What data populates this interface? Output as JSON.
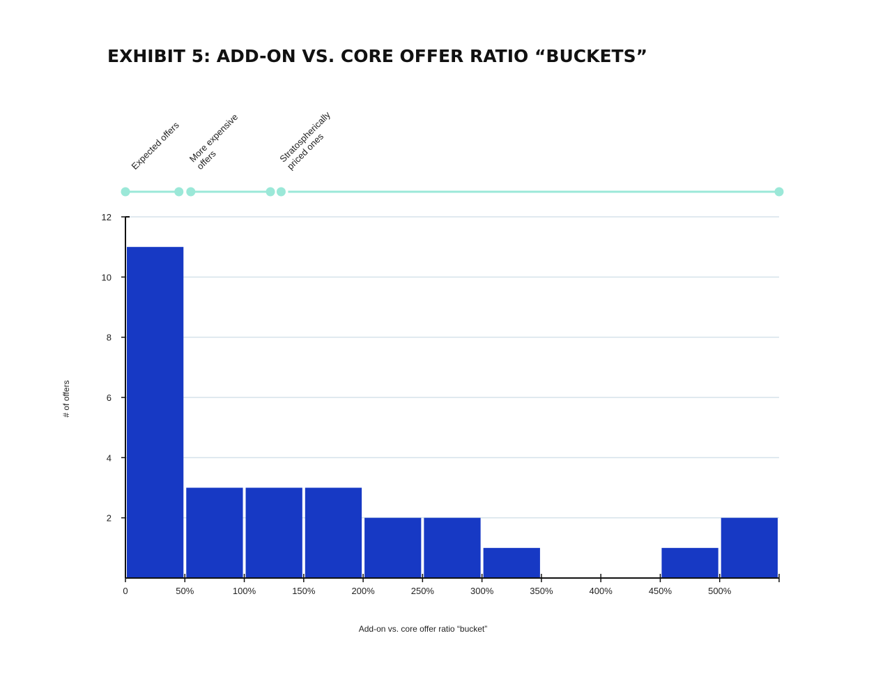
{
  "title": "EXHIBIT 5: ADD-ON VS. CORE OFFER RATIO “BUCKETS”",
  "chart_data": {
    "type": "bar",
    "title": "EXHIBIT 5: ADD-ON VS. CORE OFFER RATIO “BUCKETS”",
    "xlabel": "Add-on vs. core offer ratio “bucket”",
    "ylabel": "# of offers",
    "x_ticks": [
      "0",
      "50%",
      "100%",
      "150%",
      "200%",
      "250%",
      "300%",
      "350%",
      "400%",
      "450%",
      "500%"
    ],
    "x_range": [
      0,
      550
    ],
    "y_ticks": [
      2,
      4,
      6,
      8,
      10,
      12
    ],
    "ylim": [
      0,
      12
    ],
    "grid": true,
    "bar_color": "#1739c4",
    "bars": [
      {
        "start": 0,
        "end": 50,
        "value": 11
      },
      {
        "start": 50,
        "end": 100,
        "value": 3
      },
      {
        "start": 100,
        "end": 150,
        "value": 3
      },
      {
        "start": 150,
        "end": 200,
        "value": 3
      },
      {
        "start": 200,
        "end": 250,
        "value": 2
      },
      {
        "start": 250,
        "end": 300,
        "value": 2
      },
      {
        "start": 300,
        "end": 350,
        "value": 1
      },
      {
        "start": 350,
        "end": 400,
        "value": 0
      },
      {
        "start": 400,
        "end": 450,
        "value": 0
      },
      {
        "start": 450,
        "end": 500,
        "value": 1
      },
      {
        "start": 500,
        "end": 550,
        "value": 2
      }
    ],
    "ranges": [
      {
        "label_lines": [
          "Expected offers"
        ],
        "start": 0,
        "end": 45
      },
      {
        "label_lines": [
          "More expensive",
          "offers"
        ],
        "start": 55,
        "end": 122
      },
      {
        "label_lines": [
          "Stratospherically",
          "priced ones"
        ],
        "start": 131,
        "end": 550,
        "open_start": true
      }
    ],
    "range_color": "#9be8d8",
    "grid_color": "#d5e2ea"
  }
}
